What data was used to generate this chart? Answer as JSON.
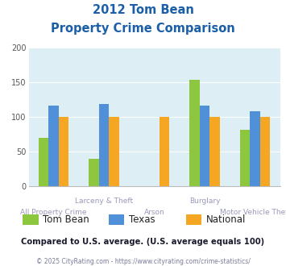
{
  "title_line1": "2012 Tom Bean",
  "title_line2": "Property Crime Comparison",
  "categories": [
    "All Property Crime",
    "Larceny & Theft",
    "Arson",
    "Burglary",
    "Motor Vehicle Theft"
  ],
  "cat_labels_top": [
    "",
    "Larceny & Theft",
    "",
    "Burglary",
    ""
  ],
  "cat_labels_bot": [
    "All Property Crime",
    "",
    "Arson",
    "",
    "Motor Vehicle Theft"
  ],
  "series": {
    "Tom Bean": [
      70,
      40,
      null,
      154,
      82
    ],
    "Texas": [
      117,
      119,
      null,
      117,
      108
    ],
    "National": [
      100,
      100,
      100,
      100,
      100
    ]
  },
  "colors": {
    "Tom Bean": "#8dc63f",
    "Texas": "#4f90d9",
    "National": "#f5a623"
  },
  "ylim": [
    0,
    200
  ],
  "yticks": [
    0,
    50,
    100,
    150,
    200
  ],
  "bar_width": 0.2,
  "background_color": "#ddeef4",
  "title_color": "#1a5fa8",
  "label_top_color": "#9999bb",
  "label_bot_color": "#9999bb",
  "footer_text": "Compared to U.S. average. (U.S. average equals 100)",
  "footer_color": "#1a1a2e",
  "copyright_text": "© 2025 CityRating.com - https://www.cityrating.com/crime-statistics/",
  "copyright_color": "#7a7a9a"
}
